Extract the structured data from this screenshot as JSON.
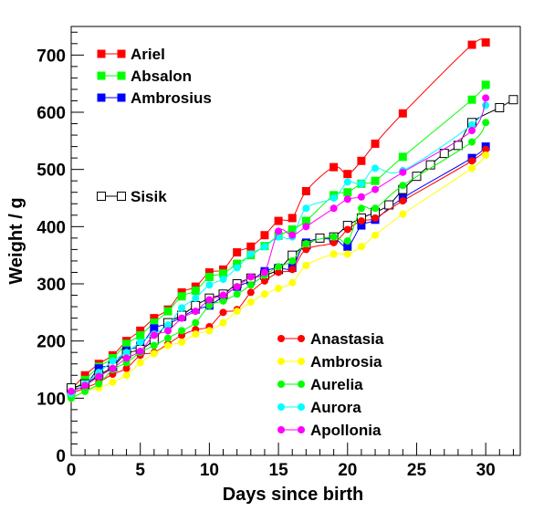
{
  "chart_data": {
    "type": "line",
    "title": "",
    "xlabel": "Days since birth",
    "ylabel": "Weight / g",
    "xlim": [
      0,
      32.5
    ],
    "ylim": [
      0,
      750
    ],
    "xticks": [
      0,
      5,
      10,
      15,
      20,
      25,
      30
    ],
    "yticks": [
      0,
      100,
      200,
      300,
      400,
      500,
      600,
      700
    ],
    "grid": false,
    "series": [
      {
        "name": "Ariel",
        "color": "#ff0000",
        "marker": "square",
        "x": [
          0,
          1,
          2,
          3,
          4,
          5,
          6,
          7,
          8,
          9,
          10,
          11,
          12,
          13,
          14,
          15,
          16,
          17,
          19,
          20,
          21,
          22,
          24,
          29,
          30
        ],
        "y": [
          115,
          140,
          160,
          175,
          200,
          218,
          240,
          255,
          285,
          295,
          320,
          325,
          355,
          365,
          385,
          410,
          415,
          462,
          504,
          492,
          515,
          545,
          598,
          718,
          722
        ]
      },
      {
        "name": "Absalon",
        "color": "#00ff00",
        "marker": "square",
        "x": [
          0,
          1,
          2,
          3,
          4,
          5,
          6,
          7,
          8,
          9,
          10,
          11,
          12,
          13,
          14,
          15,
          16,
          17,
          19,
          20,
          21,
          22,
          24,
          29,
          30
        ],
        "y": [
          110,
          132,
          155,
          170,
          195,
          210,
          232,
          252,
          278,
          288,
          312,
          318,
          335,
          350,
          366,
          384,
          395,
          410,
          455,
          460,
          475,
          480,
          522,
          622,
          648
        ]
      },
      {
        "name": "Ambrosius",
        "color": "#0000ff",
        "marker": "square",
        "x": [
          0,
          1,
          2,
          3,
          4,
          5,
          6,
          7,
          8,
          9,
          10,
          11,
          12,
          13,
          14,
          15,
          16,
          17,
          19,
          20,
          21,
          22,
          24,
          29,
          30
        ],
        "y": [
          115,
          122,
          152,
          158,
          183,
          192,
          222,
          230,
          242,
          255,
          262,
          278,
          295,
          305,
          322,
          328,
          328,
          372,
          378,
          365,
          402,
          412,
          450,
          520,
          540
        ]
      },
      {
        "name": "Sisik",
        "color": "#000000",
        "marker": "open-square",
        "x": [
          0,
          1,
          2,
          3,
          4,
          5,
          6,
          7,
          8,
          9,
          10,
          11,
          12,
          13,
          14,
          15,
          16,
          17,
          18,
          19,
          20,
          21,
          22,
          23,
          24,
          25,
          26,
          27,
          28,
          29,
          31,
          32
        ],
        "y": [
          118,
          125,
          140,
          155,
          178,
          185,
          202,
          232,
          245,
          262,
          275,
          282,
          300,
          310,
          315,
          325,
          350,
          368,
          380,
          382,
          402,
          415,
          425,
          438,
          465,
          488,
          508,
          528,
          542,
          582,
          608,
          622
        ]
      },
      {
        "name": "Anastasia",
        "color": "#ff0000",
        "marker": "circle",
        "x": [
          0,
          1,
          2,
          3,
          4,
          5,
          6,
          7,
          8,
          9,
          10,
          11,
          12,
          13,
          14,
          15,
          16,
          17,
          19,
          20,
          21,
          22,
          24,
          29,
          30
        ],
        "y": [
          108,
          118,
          128,
          142,
          152,
          175,
          180,
          195,
          210,
          220,
          225,
          250,
          255,
          285,
          305,
          320,
          325,
          360,
          372,
          395,
          410,
          415,
          445,
          515,
          535
        ]
      },
      {
        "name": "Ambrosia",
        "color": "#ffff00",
        "marker": "circle",
        "x": [
          0,
          1,
          2,
          3,
          4,
          5,
          6,
          7,
          8,
          9,
          10,
          11,
          12,
          13,
          14,
          15,
          16,
          17,
          19,
          20,
          21,
          22,
          24,
          29,
          30
        ],
        "y": [
          100,
          112,
          118,
          128,
          140,
          162,
          178,
          192,
          198,
          212,
          218,
          232,
          252,
          268,
          282,
          292,
          302,
          332,
          352,
          352,
          365,
          385,
          422,
          502,
          525
        ]
      },
      {
        "name": "Aurelia",
        "color": "#00ff00",
        "marker": "circle",
        "x": [
          0,
          1,
          2,
          3,
          4,
          5,
          6,
          7,
          8,
          9,
          10,
          11,
          12,
          13,
          14,
          15,
          16,
          17,
          19,
          20,
          21,
          22,
          24,
          29,
          30
        ],
        "y": [
          100,
          112,
          125,
          150,
          162,
          180,
          192,
          205,
          218,
          232,
          262,
          270,
          282,
          298,
          315,
          330,
          340,
          370,
          382,
          375,
          432,
          432,
          472,
          548,
          582
        ]
      },
      {
        "name": "Aurora",
        "color": "#00ffff",
        "marker": "circle",
        "x": [
          0,
          1,
          2,
          3,
          4,
          5,
          6,
          7,
          8,
          9,
          10,
          11,
          12,
          13,
          14,
          15,
          16,
          17,
          19,
          20,
          21,
          22,
          24,
          29,
          30
        ],
        "y": [
          108,
          125,
          145,
          165,
          180,
          198,
          212,
          228,
          258,
          275,
          298,
          308,
          328,
          352,
          365,
          382,
          382,
          432,
          450,
          478,
          475,
          502,
          498,
          578,
          612
        ]
      },
      {
        "name": "Apollonia",
        "color": "#ff00ff",
        "marker": "circle",
        "x": [
          0,
          1,
          2,
          3,
          4,
          5,
          6,
          7,
          8,
          9,
          10,
          11,
          12,
          13,
          14,
          15,
          16,
          17,
          19,
          20,
          21,
          22,
          24,
          29,
          30
        ],
        "y": [
          112,
          122,
          138,
          152,
          170,
          182,
          210,
          218,
          240,
          252,
          272,
          280,
          295,
          312,
          320,
          392,
          385,
          400,
          432,
          448,
          452,
          465,
          495,
          568,
          625
        ]
      }
    ]
  }
}
